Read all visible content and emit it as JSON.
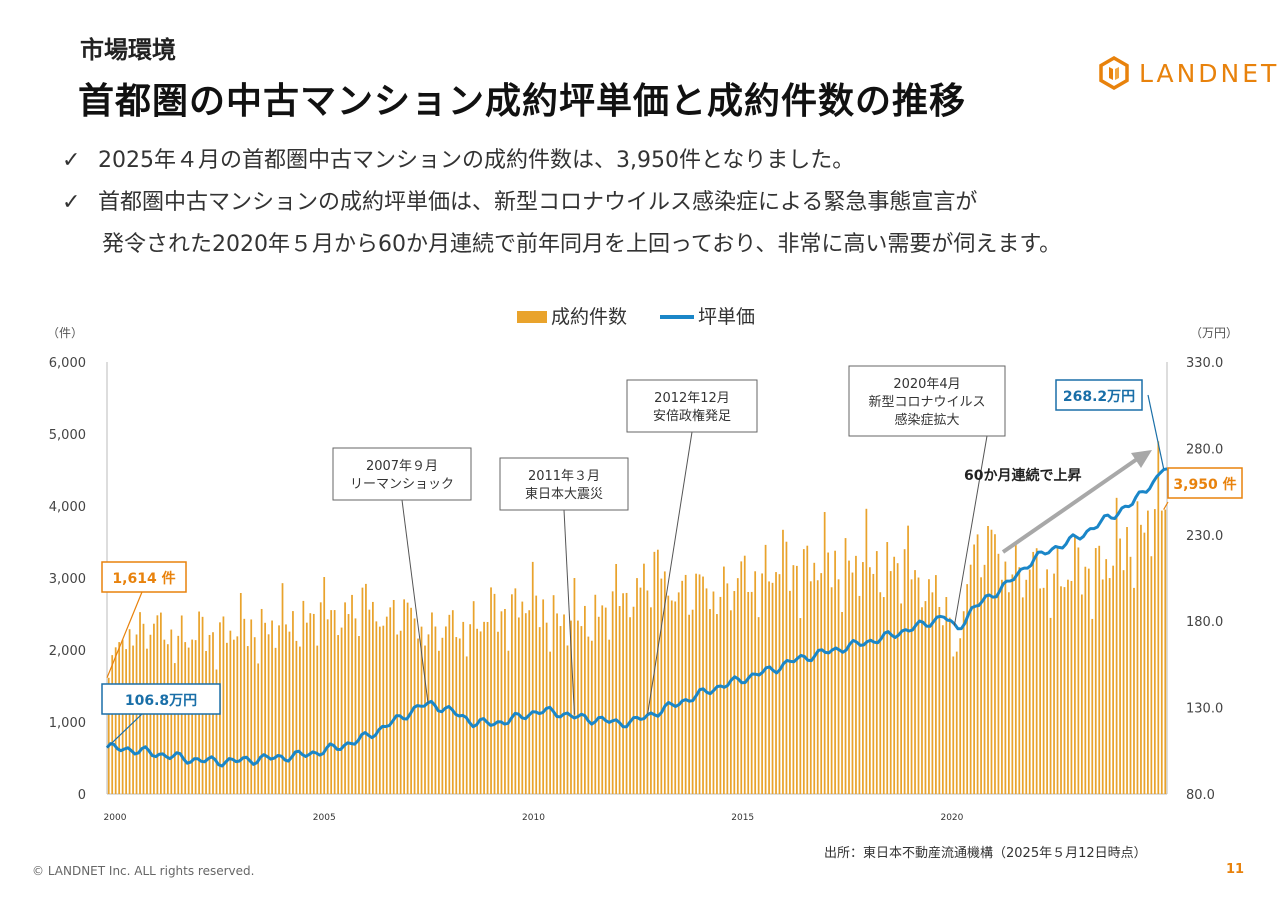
{
  "header": {
    "section": "市場環境",
    "title": "首都圏の中古マンション成約坪単価と成約件数の推移",
    "logo_text": "LANDNET"
  },
  "bullets": [
    {
      "check": "✓",
      "text": "2025年４月の首都圏中古マンションの成約件数は、3,950件となりました。"
    },
    {
      "check": "✓",
      "text": "首都圏中古マンションの成約坪単価は、新型コロナウイルス感染症による緊急事態宣言が"
    },
    {
      "check": "",
      "text": "発令された2020年５月から60か月連続で前年同月を上回っており、非常に高い需要が伺えます。"
    }
  ],
  "footer": {
    "copyright": "© LANDNET Inc. ALL rights reserved.",
    "source": "出所：東日本不動産流通機構（2025年５月12日時点）",
    "page": "11"
  },
  "chart_data": {
    "type": "bar+line",
    "legend": [
      "成約件数",
      "坪単価"
    ],
    "legend_position": "top-center",
    "left_unit": "（件）",
    "right_unit": "（万円）",
    "left_ticks": [
      "6,000",
      "5,000",
      "4,000",
      "3,000",
      "2,000",
      "1,000",
      "0"
    ],
    "right_ticks": [
      "330.0",
      "280.0",
      "230.0",
      "180.0",
      "130.0",
      "80.0"
    ],
    "left_ylim": [
      0,
      6000
    ],
    "right_ylim": [
      80,
      330
    ],
    "x_ticks": [
      "2000",
      "2005",
      "2010",
      "2015",
      "2020"
    ],
    "x_range": [
      2000.0,
      2025.33
    ],
    "colors": {
      "bars": "#E9A32C",
      "line": "#1A86C8",
      "accent_orange": "#E8820C",
      "callout_blue": "#1A6FA8"
    },
    "annotations": [
      {
        "text": "2007年９月\nリーマンショック",
        "x": 2007.67
      },
      {
        "text": "2011年３月\n東日本大震災",
        "x": 2011.17
      },
      {
        "text": "2012年12月\n安倍政権発足",
        "x": 2012.92
      },
      {
        "text": "2020年4月\n新型コロナウイルス\n感染症拡大",
        "x": 2020.25
      }
    ],
    "trend_label": "60か月連続で上昇",
    "callouts": [
      {
        "label": "1,614 件",
        "kind": "bar",
        "x": 2000.0,
        "value": 1614
      },
      {
        "label": "106.8万円",
        "kind": "line",
        "x": 2000.0,
        "value": 106.8
      },
      {
        "label": "268.2万円",
        "kind": "line",
        "x": 2025.25,
        "value": 268.2
      },
      {
        "label": "3,950 件",
        "kind": "bar",
        "x": 2025.25,
        "value": 3950
      }
    ],
    "price_path": [
      [
        2000.0,
        106.8
      ],
      [
        2000.5,
        106
      ],
      [
        2001.0,
        104
      ],
      [
        2001.5,
        102
      ],
      [
        2002.0,
        100
      ],
      [
        2002.5,
        99
      ],
      [
        2003.0,
        99
      ],
      [
        2003.5,
        100
      ],
      [
        2004.0,
        101
      ],
      [
        2004.5,
        102
      ],
      [
        2005.0,
        104
      ],
      [
        2005.5,
        107
      ],
      [
        2006.0,
        111
      ],
      [
        2006.5,
        117
      ],
      [
        2007.0,
        124
      ],
      [
        2007.5,
        131
      ],
      [
        2007.8,
        132
      ],
      [
        2008.3,
        127
      ],
      [
        2008.8,
        121
      ],
      [
        2009.3,
        121
      ],
      [
        2009.8,
        124
      ],
      [
        2010.3,
        128
      ],
      [
        2010.8,
        127
      ],
      [
        2011.3,
        124
      ],
      [
        2011.8,
        123
      ],
      [
        2012.2,
        121
      ],
      [
        2012.6,
        122
      ],
      [
        2013.0,
        126
      ],
      [
        2013.5,
        131
      ],
      [
        2014.0,
        136
      ],
      [
        2014.5,
        141
      ],
      [
        2015.0,
        145
      ],
      [
        2015.5,
        149
      ],
      [
        2016.0,
        153
      ],
      [
        2016.5,
        158
      ],
      [
        2017.0,
        161
      ],
      [
        2017.5,
        164
      ],
      [
        2018.0,
        167
      ],
      [
        2018.5,
        170
      ],
      [
        2019.0,
        174
      ],
      [
        2019.5,
        178
      ],
      [
        2020.0,
        183
      ],
      [
        2020.3,
        175
      ],
      [
        2020.7,
        187
      ],
      [
        2021.0,
        193
      ],
      [
        2021.5,
        201
      ],
      [
        2022.0,
        213
      ],
      [
        2022.5,
        221
      ],
      [
        2023.0,
        226
      ],
      [
        2023.5,
        233
      ],
      [
        2024.0,
        241
      ],
      [
        2024.5,
        248
      ],
      [
        2024.9,
        259
      ],
      [
        2025.1,
        262
      ],
      [
        2025.25,
        268.2
      ]
    ],
    "volume_path": [
      [
        2000.0,
        1614
      ],
      [
        2000.5,
        2300
      ],
      [
        2001.0,
        2250
      ],
      [
        2002.0,
        2150
      ],
      [
        2003.0,
        2250
      ],
      [
        2004.0,
        2300
      ],
      [
        2005.0,
        2450
      ],
      [
        2006.0,
        2550
      ],
      [
        2007.0,
        2450
      ],
      [
        2008.0,
        2200
      ],
      [
        2009.0,
        2400
      ],
      [
        2010.0,
        2650
      ],
      [
        2011.0,
        2350
      ],
      [
        2012.0,
        2550
      ],
      [
        2013.0,
        3000
      ],
      [
        2014.0,
        2750
      ],
      [
        2015.0,
        2850
      ],
      [
        2016.0,
        3100
      ],
      [
        2017.0,
        3150
      ],
      [
        2018.0,
        3150
      ],
      [
        2019.0,
        3150
      ],
      [
        2020.0,
        2700
      ],
      [
        2020.3,
        1700
      ],
      [
        2020.6,
        3200
      ],
      [
        2021.0,
        3400
      ],
      [
        2022.0,
        3000
      ],
      [
        2023.0,
        3000
      ],
      [
        2024.0,
        3200
      ],
      [
        2025.25,
        3950
      ]
    ]
  }
}
